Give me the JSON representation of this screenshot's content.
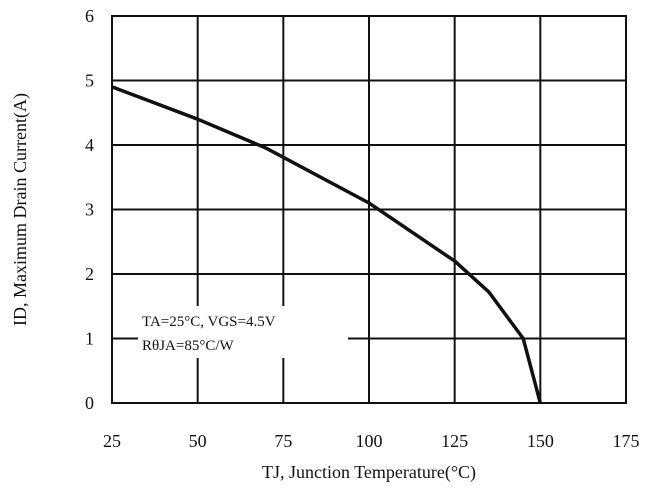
{
  "chart_data": {
    "type": "line",
    "title": "",
    "xlabel": "TJ, Junction Temperature(°C)",
    "ylabel": "ID, Maximum Drain Current(A)",
    "xlim": [
      25,
      175
    ],
    "ylim": [
      0,
      6
    ],
    "x_ticks": [
      25,
      50,
      75,
      100,
      125,
      150,
      175
    ],
    "y_ticks": [
      0,
      1,
      2,
      3,
      4,
      5,
      6
    ],
    "grid": true,
    "annotation": [
      "TA=25°C, VGS=4.5V",
      "RθJA=85°C/W"
    ],
    "series": [
      {
        "x": [
          25,
          50,
          70,
          100,
          125,
          135,
          145,
          150
        ],
        "y": [
          4.9,
          4.4,
          3.95,
          3.1,
          2.2,
          1.72,
          1.0,
          0.0
        ]
      }
    ]
  }
}
